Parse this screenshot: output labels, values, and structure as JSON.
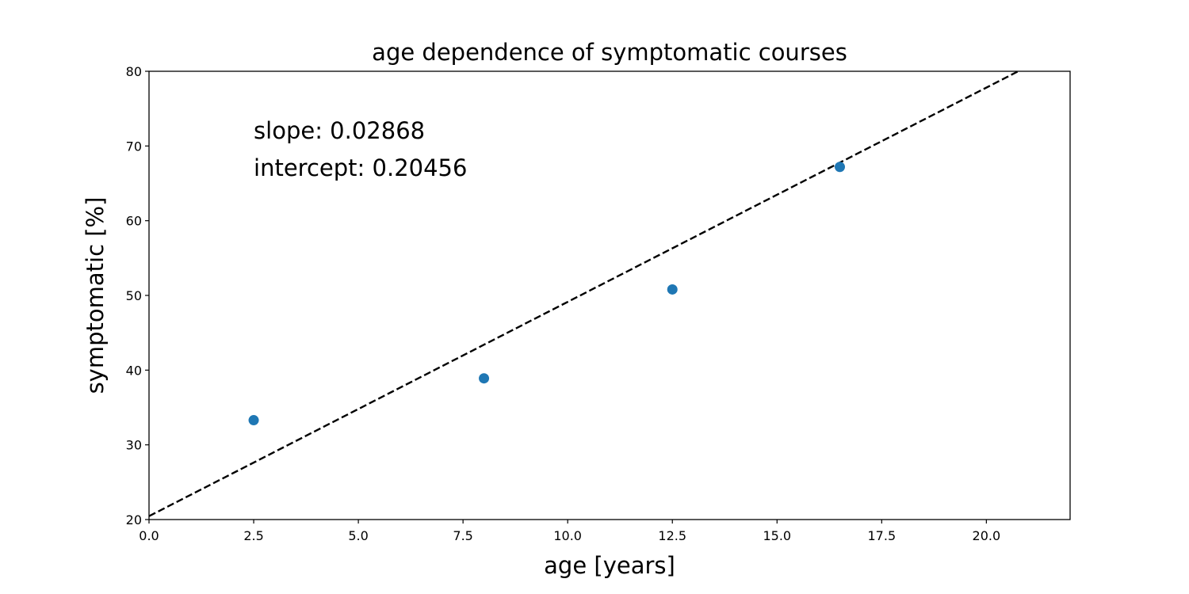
{
  "chart_data": {
    "type": "scatter",
    "title": "age dependence of symptomatic courses",
    "xlabel": "age [years]",
    "ylabel": "symptomatic [%]",
    "xlim": [
      0,
      22
    ],
    "ylim": [
      20,
      80
    ],
    "xticks": [
      0.0,
      2.5,
      5.0,
      7.5,
      10.0,
      12.5,
      15.0,
      17.5,
      20.0
    ],
    "xtick_labels": [
      "0.0",
      "2.5",
      "5.0",
      "7.5",
      "10.0",
      "12.5",
      "15.0",
      "17.5",
      "20.0"
    ],
    "yticks": [
      20,
      30,
      40,
      50,
      60,
      70,
      80
    ],
    "ytick_labels": [
      "20",
      "30",
      "40",
      "50",
      "60",
      "70",
      "80"
    ],
    "grid": false,
    "series": [
      {
        "type": "scatter",
        "color": "#1f77b4",
        "x": [
          2.5,
          8.0,
          12.5,
          16.5
        ],
        "y": [
          33.3,
          38.9,
          50.8,
          67.2
        ]
      },
      {
        "type": "line",
        "style": "dashed",
        "color": "#000000",
        "x": [
          0,
          22
        ],
        "y": [
          20.456,
          83.552
        ]
      }
    ],
    "annotations": [
      {
        "text": "slope: 0.02868",
        "x": 2.5,
        "y": 71
      },
      {
        "text": "intercept: 0.20456",
        "x": 2.5,
        "y": 66
      }
    ]
  }
}
